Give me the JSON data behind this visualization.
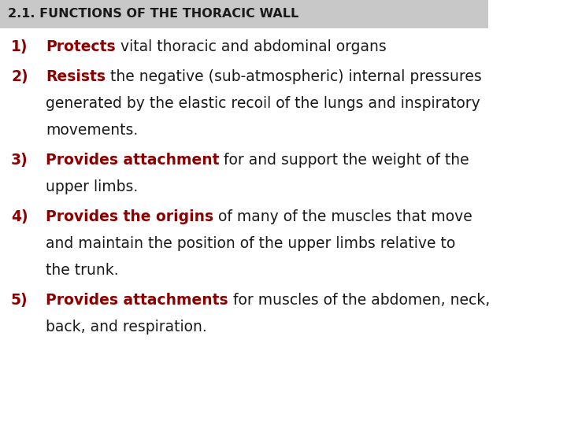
{
  "background_color": "#ffffff",
  "header_bg_color": "#c8c8c8",
  "header_text": "2.1. FUNCTIONS OF THE THORACIC WALL",
  "header_text_color": "#1a1a1a",
  "header_font_size": 11.5,
  "body_font_size": 13.5,
  "red_color": "#8b0000",
  "black_color": "#1a1a1a",
  "fig_width": 7.2,
  "fig_height": 5.4,
  "dpi": 100,
  "items": [
    {
      "number": "1)",
      "bold_part": "Protects",
      "lines": [
        [
          {
            "bold": true,
            "text": "Protects"
          },
          {
            "bold": false,
            "text": " vital thoracic and abdominal organs"
          }
        ]
      ]
    },
    {
      "number": "2)",
      "bold_part": "Resists",
      "lines": [
        [
          {
            "bold": true,
            "text": "Resists"
          },
          {
            "bold": false,
            "text": " the negative (sub-atmospheric) internal pressures"
          }
        ],
        [
          {
            "bold": false,
            "text": "generated by the elastic recoil of the lungs and inspiratory"
          }
        ],
        [
          {
            "bold": false,
            "text": "movements."
          }
        ]
      ]
    },
    {
      "number": "3)",
      "bold_part": "Provides attachment",
      "lines": [
        [
          {
            "bold": true,
            "text": "Provides attachment"
          },
          {
            "bold": false,
            "text": " for and support the weight of the"
          }
        ],
        [
          {
            "bold": false,
            "text": "upper limbs."
          }
        ]
      ]
    },
    {
      "number": "4)",
      "bold_part": "Provides the origins",
      "lines": [
        [
          {
            "bold": true,
            "text": "Provides the origins"
          },
          {
            "bold": false,
            "text": " of many of the muscles that move"
          }
        ],
        [
          {
            "bold": false,
            "text": "and maintain the position of the upper limbs relative to"
          }
        ],
        [
          {
            "bold": false,
            "text": "the trunk."
          }
        ]
      ]
    },
    {
      "number": "5)",
      "bold_part": "Provides attachments",
      "lines": [
        [
          {
            "bold": true,
            "text": "Provides attachments"
          },
          {
            "bold": false,
            "text": " for muscles of the abdomen, neck,"
          }
        ],
        [
          {
            "bold": false,
            "text": "back, and respiration."
          }
        ]
      ]
    }
  ]
}
